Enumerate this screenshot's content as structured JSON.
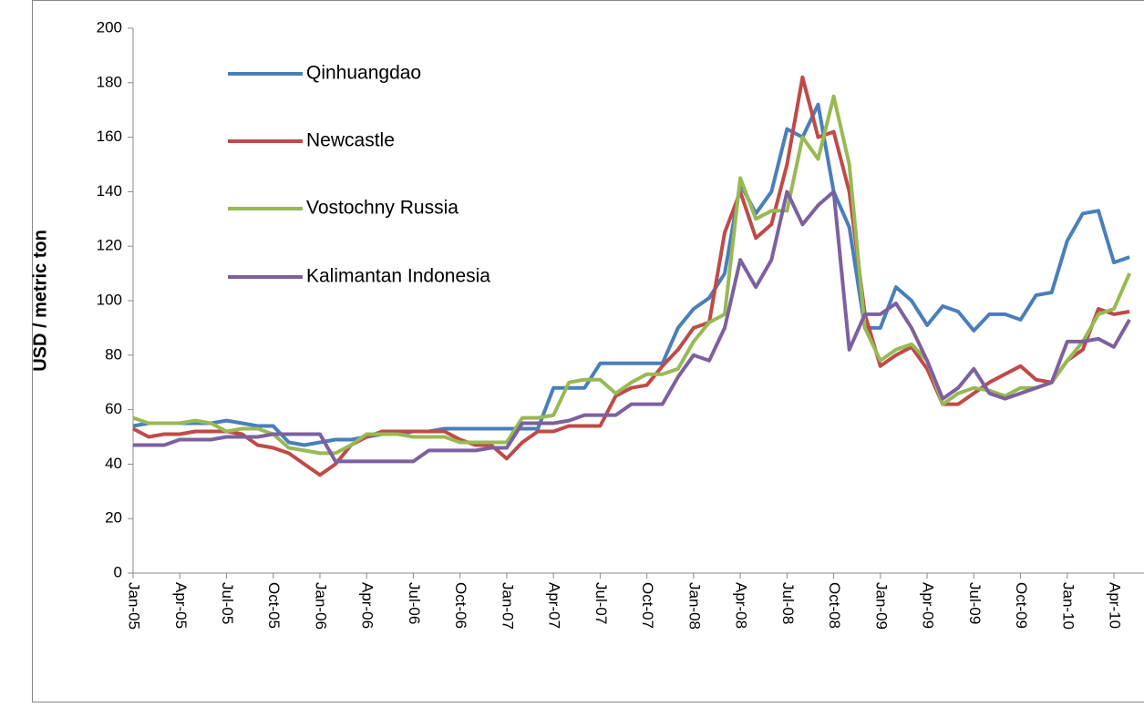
{
  "chart_data": {
    "type": "line",
    "y_label": "USD / metric ton",
    "categories": [
      "Jan-05",
      null,
      null,
      "Apr-05",
      null,
      null,
      "Jul-05",
      null,
      null,
      "Oct-05",
      null,
      null,
      "Jan-06",
      null,
      null,
      "Apr-06",
      null,
      null,
      "Jul-06",
      null,
      null,
      "Oct-06",
      null,
      null,
      "Jan-07",
      null,
      null,
      "Apr-07",
      null,
      null,
      "Jul-07",
      null,
      null,
      "Oct-07",
      null,
      null,
      "Jan-08",
      null,
      null,
      "Apr-08",
      null,
      null,
      "Jul-08",
      null,
      null,
      "Oct-08",
      null,
      null,
      "Jan-09",
      null,
      null,
      "Apr-09",
      null,
      null,
      "Jul-09",
      null,
      null,
      "Oct-09",
      null,
      null,
      "Jan-10",
      null,
      null,
      "Apr-10",
      null
    ],
    "series": [
      {
        "name": "Qinhuangdao",
        "color": "#4a7ebb",
        "values": [
          54,
          55,
          55,
          55,
          55,
          55,
          56,
          55,
          54,
          54,
          48,
          47,
          48,
          49,
          49,
          50,
          51,
          51,
          52,
          52,
          53,
          53,
          53,
          53,
          53,
          53,
          53,
          68,
          68,
          68,
          77,
          77,
          77,
          77,
          77,
          90,
          97,
          101,
          110,
          143,
          132,
          140,
          163,
          160,
          172,
          140,
          127,
          90,
          90,
          105,
          100,
          91,
          98,
          96,
          89,
          95,
          95,
          93,
          102,
          103,
          122,
          132,
          133,
          114,
          116
        ]
      },
      {
        "name": "Newcastle",
        "color": "#be4b48",
        "values": [
          53,
          50,
          51,
          51,
          52,
          52,
          52,
          51,
          47,
          46,
          44,
          40,
          36,
          40,
          47,
          50,
          52,
          52,
          52,
          52,
          52,
          49,
          47,
          47,
          42,
          48,
          52,
          52,
          54,
          54,
          54,
          65,
          68,
          69,
          76,
          82,
          90,
          92,
          125,
          140,
          123,
          128,
          150,
          182,
          160,
          162,
          140,
          95,
          76,
          80,
          83,
          75,
          62,
          62,
          66,
          70,
          73,
          76,
          71,
          70,
          78,
          82,
          97,
          95,
          96
        ]
      },
      {
        "name": "Vostochny Russia",
        "color": "#98b954",
        "values": [
          57,
          55,
          55,
          55,
          56,
          55,
          52,
          53,
          53,
          51,
          46,
          45,
          44,
          44,
          47,
          51,
          51,
          51,
          50,
          50,
          50,
          48,
          48,
          48,
          48,
          57,
          57,
          58,
          70,
          71,
          71,
          66,
          70,
          73,
          73,
          75,
          85,
          92,
          95,
          145,
          130,
          133,
          133,
          160,
          152,
          175,
          150,
          90,
          78,
          82,
          84,
          78,
          62,
          66,
          68,
          67,
          65,
          68,
          68,
          70,
          78,
          85,
          95,
          97,
          110
        ]
      },
      {
        "name": "Kalimantan Indonesia",
        "color": "#7d60a0",
        "values": [
          47,
          47,
          47,
          49,
          49,
          49,
          50,
          50,
          50,
          51,
          51,
          51,
          51,
          41,
          41,
          41,
          41,
          41,
          41,
          45,
          45,
          45,
          45,
          46,
          46,
          55,
          55,
          55,
          56,
          58,
          58,
          58,
          62,
          62,
          62,
          72,
          80,
          78,
          90,
          115,
          105,
          115,
          140,
          128,
          135,
          140,
          82,
          95,
          95,
          99,
          90,
          78,
          64,
          68,
          75,
          66,
          64,
          66,
          68,
          70,
          85,
          85,
          86,
          83,
          93
        ]
      }
    ],
    "ylim": [
      0,
      200
    ],
    "yticks": [
      0,
      20,
      40,
      60,
      80,
      100,
      120,
      140,
      160,
      180,
      200
    ],
    "grid": false
  }
}
